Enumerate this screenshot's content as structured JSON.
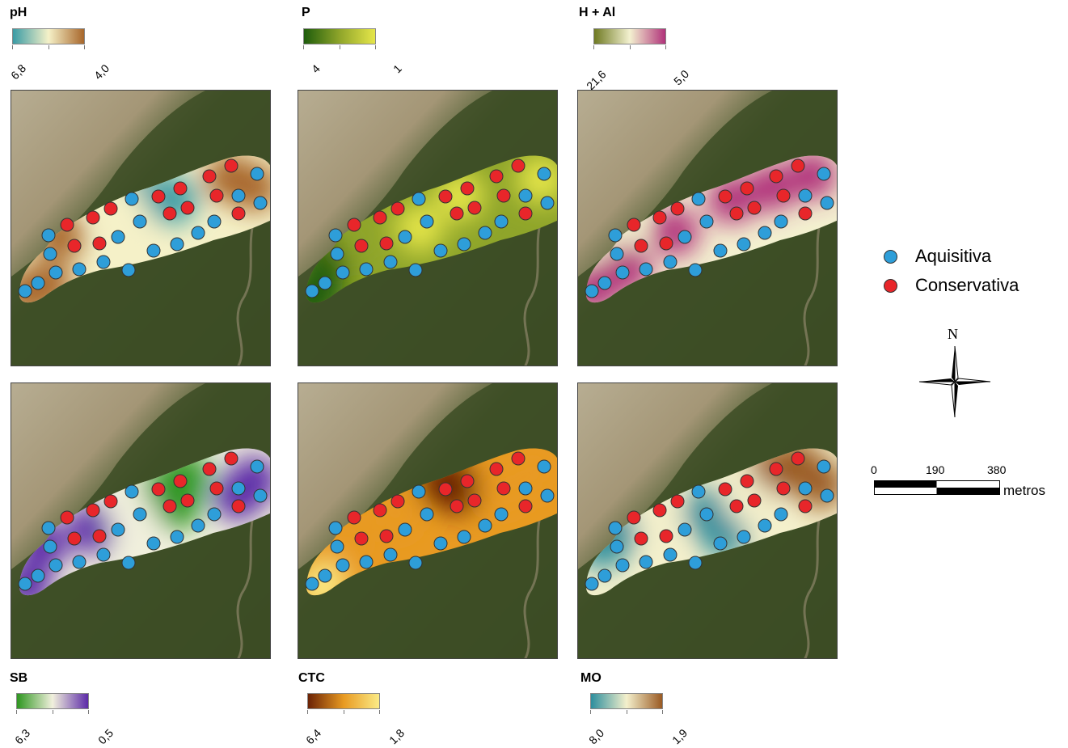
{
  "panels": [
    {
      "id": "ph",
      "title": "pH",
      "min_label": "6,8",
      "max_label": "4,0",
      "ramp": [
        "#3a9ba5",
        "#f5f1c8",
        "#a8662a"
      ]
    },
    {
      "id": "p",
      "title": "P",
      "min_label": "4",
      "max_label": "1",
      "ramp": [
        "#1e5c0c",
        "#8fa52a",
        "#e6e64a"
      ]
    },
    {
      "id": "hal",
      "title": "H + Al",
      "min_label": "21,6",
      "max_label": "5,0",
      "ramp": [
        "#6f7a22",
        "#f3f1d0",
        "#b1327a"
      ]
    },
    {
      "id": "sb",
      "title": "SB",
      "min_label": "6,3",
      "max_label": "0,5",
      "ramp": [
        "#2e9620",
        "#f1f0dd",
        "#5c2aa8"
      ]
    },
    {
      "id": "ctc",
      "title": "CTC",
      "min_label": "6,4",
      "max_label": "1,8",
      "ramp": [
        "#6b2205",
        "#e89a22",
        "#fbeb86"
      ]
    },
    {
      "id": "mo",
      "title": "MO",
      "min_label": "8,0",
      "max_label": "1,9",
      "ramp": [
        "#2d8e9d",
        "#f4f0cc",
        "#9a5a23"
      ]
    }
  ],
  "legend": {
    "aquisitiva": {
      "label": "Aquisitiva",
      "color": "#2e9ed9"
    },
    "conservativa": {
      "label": "Conservativa",
      "color": "#e8262a"
    }
  },
  "north": {
    "label": "N"
  },
  "scalebar": {
    "labels": [
      "0",
      "190",
      "380"
    ],
    "unit": "metros"
  }
}
